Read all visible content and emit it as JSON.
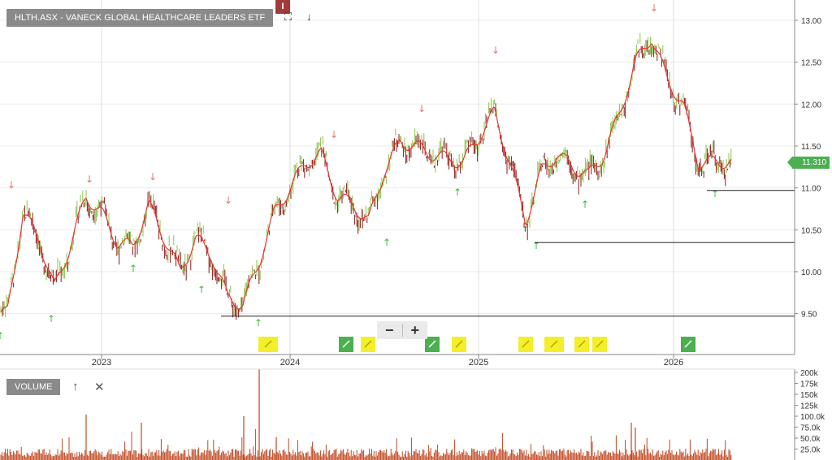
{
  "header": {
    "title": "HLTH.ASX - VANECK GLOBAL HEALTHCARE LEADERS ETF",
    "badge": "I",
    "expand_icon": "expand-icon",
    "down_icon": "arrow-down-icon"
  },
  "price_axis": {
    "labels": [
      "13.00",
      "12.50",
      "12.00",
      "11.50",
      "11.00",
      "10.50",
      "10.00",
      "9.50"
    ]
  },
  "current_price": "11.310",
  "time_axis": {
    "labels": [
      "2023",
      "2024",
      "2025",
      "2026"
    ]
  },
  "zoom": {
    "minus": "−",
    "plus": "+"
  },
  "volume_panel": {
    "label": "VOLUME",
    "up_icon": "↑",
    "close_icon": "✕",
    "axis_labels": [
      "200k",
      "175k",
      "150k",
      "125k",
      "100.0k",
      "75.0k",
      "50.0k",
      "25.0k"
    ]
  },
  "colors": {
    "up": "#8bc34a",
    "down": "#8b1a1a",
    "ma": "#e53935",
    "volume": "#c0451f",
    "buy_arrow": "#3dbb3d",
    "sell_arrow": "#e57373",
    "event_yellow": "#f3ef2a",
    "event_green": "#4caf50"
  },
  "chart_data": {
    "type": "line",
    "title": "HLTH.ASX - VANECK GLOBAL HEALTHCARE LEADERS ETF",
    "x_ticks": [
      "2023",
      "2024",
      "2025",
      "2026"
    ],
    "ylim": [
      9.2,
      13.2
    ],
    "series": [
      {
        "values_approx": [
          [
            "2022-07",
            9.5
          ],
          [
            "2022-08",
            10.7
          ],
          [
            "2022-09",
            10.4
          ],
          [
            "2022-10",
            9.8
          ],
          [
            "2022-11",
            10.3
          ],
          [
            "2022-12",
            10.9
          ],
          [
            "2023-01",
            10.7
          ],
          [
            "2023-02",
            10.35
          ],
          [
            "2023-03",
            10.3
          ],
          [
            "2023-04",
            10.8
          ],
          [
            "2023-05",
            10.4
          ],
          [
            "2023-06",
            10.0
          ],
          [
            "2023-07",
            10.4
          ],
          [
            "2023-08",
            10.2
          ],
          [
            "2023-09",
            9.7
          ],
          [
            "2023-10",
            9.6
          ],
          [
            "2023-11",
            10.1
          ],
          [
            "2023-12",
            10.7
          ],
          [
            "2024-01",
            11.0
          ],
          [
            "2024-02",
            11.3
          ],
          [
            "2024-03",
            11.4
          ],
          [
            "2024-04",
            10.9
          ],
          [
            "2024-05",
            10.8
          ],
          [
            "2024-06",
            10.6
          ],
          [
            "2024-07",
            11.2
          ],
          [
            "2024-08",
            11.55
          ],
          [
            "2024-09",
            11.5
          ],
          [
            "2024-10",
            11.4
          ],
          [
            "2024-11",
            11.35
          ],
          [
            "2024-12",
            11.3
          ],
          [
            "2025-01",
            11.6
          ],
          [
            "2025-02",
            11.9
          ],
          [
            "2025-03",
            11.3
          ],
          [
            "2025-04",
            10.6
          ],
          [
            "2025-05",
            11.2
          ],
          [
            "2025-06",
            11.4
          ],
          [
            "2025-07",
            11.25
          ],
          [
            "2025-08",
            11.15
          ],
          [
            "2025-09",
            11.4
          ],
          [
            "2025-10",
            11.9
          ],
          [
            "2025-11",
            12.5
          ],
          [
            "2025-12",
            12.8
          ],
          [
            "2026-01",
            12.3
          ],
          [
            "2026-02",
            12.0
          ],
          [
            "2026-03",
            11.3
          ],
          [
            "2026-04",
            11.31
          ]
        ]
      }
    ],
    "support_lines": [
      9.47,
      10.35,
      10.97
    ],
    "grid": true
  }
}
